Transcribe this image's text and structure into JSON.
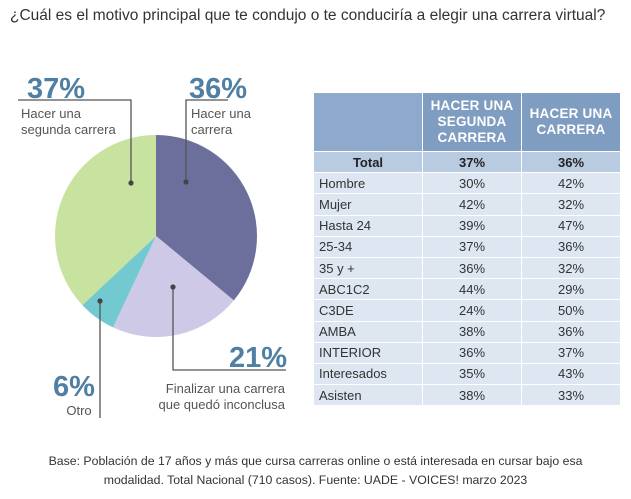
{
  "question": "¿Cuál es el motivo principal que te condujo o te conduciría a elegir una carrera virtual?",
  "chart_data": {
    "type": "pie",
    "title": "¿Cuál es el motivo principal que te condujo o te conduciría a elegir una carrera virtual?",
    "slices": [
      {
        "name": "Hacer una carrera",
        "pct_label": "36%",
        "label_lines": [
          "Hacer una",
          "carrera"
        ],
        "value": 36,
        "color": "#6c6f9c"
      },
      {
        "name": "Finalizar una carrera que quedó inconclusa",
        "pct_label": "21%",
        "label_lines": [
          "Finalizar una carrera",
          "que quedó inconclusa"
        ],
        "value": 21,
        "color": "#cdc9e6"
      },
      {
        "name": "Otro",
        "pct_label": "6%",
        "label_lines": [
          "Otro"
        ],
        "value": 6,
        "color": "#73c9d0"
      },
      {
        "name": "Hacer una segunda carrera",
        "pct_label": "37%",
        "label_lines": [
          "Hacer una",
          "segunda carrera"
        ],
        "value": 37,
        "color": "#c8e2a0"
      }
    ]
  },
  "table": {
    "headers": [
      "",
      "HACER UNA SEGUNDA CARRERA",
      "HACER UNA CARRERA"
    ],
    "header_lines": [
      [],
      [
        "HACER UNA",
        "SEGUNDA",
        "CARRERA"
      ],
      [
        "HACER UNA",
        "CARRERA"
      ]
    ],
    "total": {
      "label": "Total",
      "v1": "37%",
      "v2": "36%"
    },
    "rows": [
      {
        "label": "Hombre",
        "v1": "30%",
        "v2": "42%"
      },
      {
        "label": "Mujer",
        "v1": "42%",
        "v2": "32%"
      },
      {
        "label": "Hasta 24",
        "v1": "39%",
        "v2": "47%"
      },
      {
        "label": "25-34",
        "v1": "37%",
        "v2": "36%"
      },
      {
        "label": "35 y +",
        "v1": "36%",
        "v2": "32%"
      },
      {
        "label": "ABC1C2",
        "v1": "44%",
        "v2": "29%"
      },
      {
        "label": "C3DE",
        "v1": "24%",
        "v2": "50%"
      },
      {
        "label": "AMBA",
        "v1": "38%",
        "v2": "36%"
      },
      {
        "label": "INTERIOR",
        "v1": "36%",
        "v2": "37%"
      },
      {
        "label": "Interesados",
        "v1": "35%",
        "v2": "43%"
      },
      {
        "label": "Asisten",
        "v1": "38%",
        "v2": "33%"
      }
    ]
  },
  "footer": {
    "line1": "Base: Población de 17 años y más que cursa carreras online o está interesada en cursar bajo esa",
    "line2": "modalidad. Total Nacional (710 casos). Fuente: UADE - VOICES! marzo 2023"
  }
}
